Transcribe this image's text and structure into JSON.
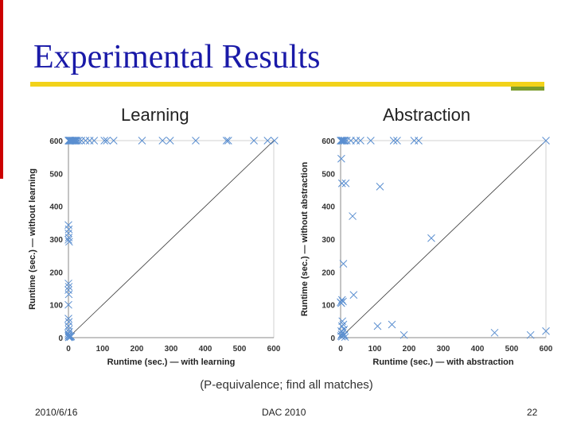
{
  "slide": {
    "title": "Experimental Results",
    "caption": "(P-equivalence; find all matches)",
    "footer": {
      "date": "2010/6/16",
      "conference": "DAC 2010",
      "page": "22"
    },
    "colors": {
      "title": "#1a1aa8",
      "rule": "#f2d21a",
      "rule_accent": "#7b9c2c",
      "side_bar": "#cc0000",
      "marker": "#5b8fd0"
    }
  },
  "chart_data": [
    {
      "type": "scatter",
      "panel_label": "Learning",
      "xlabel": "Runtime (sec.) — with learning",
      "ylabel": "Runtime (sec.) — without learning",
      "xlim": [
        0,
        600
      ],
      "ylim": [
        0,
        600
      ],
      "xticks": [
        0,
        100,
        200,
        300,
        400,
        500,
        600
      ],
      "yticks": [
        0,
        100,
        200,
        300,
        400,
        500,
        600
      ],
      "grid": false,
      "diagonal": true,
      "points": [
        [
          0,
          600
        ],
        [
          1,
          600
        ],
        [
          2,
          600
        ],
        [
          3,
          600
        ],
        [
          4,
          600
        ],
        [
          5,
          600
        ],
        [
          6,
          600
        ],
        [
          8,
          600
        ],
        [
          10,
          600
        ],
        [
          12,
          600
        ],
        [
          14,
          600
        ],
        [
          16,
          600
        ],
        [
          18,
          600
        ],
        [
          20,
          600
        ],
        [
          22,
          600
        ],
        [
          25,
          600
        ],
        [
          30,
          600
        ],
        [
          38,
          600
        ],
        [
          50,
          600
        ],
        [
          62,
          600
        ],
        [
          75,
          600
        ],
        [
          105,
          600
        ],
        [
          112,
          600
        ],
        [
          132,
          600
        ],
        [
          215,
          600
        ],
        [
          275,
          600
        ],
        [
          297,
          600
        ],
        [
          372,
          600
        ],
        [
          462,
          600
        ],
        [
          467,
          600
        ],
        [
          542,
          600
        ],
        [
          582,
          600
        ],
        [
          602,
          600
        ],
        [
          0,
          343
        ],
        [
          1,
          330
        ],
        [
          0,
          318
        ],
        [
          1,
          305
        ],
        [
          0,
          298
        ],
        [
          2,
          292
        ],
        [
          0,
          165
        ],
        [
          1,
          155
        ],
        [
          0,
          145
        ],
        [
          1,
          132
        ],
        [
          0,
          100
        ],
        [
          0,
          58
        ],
        [
          1,
          48
        ],
        [
          0,
          35
        ],
        [
          1,
          25
        ],
        [
          2,
          18
        ],
        [
          0,
          12
        ],
        [
          1,
          8
        ],
        [
          0,
          5
        ],
        [
          3,
          3
        ],
        [
          1,
          1
        ],
        [
          2,
          2
        ],
        [
          4,
          5
        ],
        [
          6,
          2
        ],
        [
          8,
          4
        ]
      ]
    },
    {
      "type": "scatter",
      "panel_label": "Abstraction",
      "xlabel": "Runtime (sec.) — with abstraction",
      "ylabel": "Runtime (sec.) — without abstraction",
      "xlim": [
        0,
        600
      ],
      "ylim": [
        0,
        600
      ],
      "xticks": [
        0,
        100,
        200,
        300,
        400,
        500,
        600
      ],
      "yticks": [
        0,
        100,
        200,
        300,
        400,
        500,
        600
      ],
      "grid": false,
      "diagonal": true,
      "points": [
        [
          0,
          600
        ],
        [
          1,
          600
        ],
        [
          3,
          600
        ],
        [
          5,
          600
        ],
        [
          7,
          600
        ],
        [
          10,
          600
        ],
        [
          13,
          600
        ],
        [
          18,
          600
        ],
        [
          30,
          600
        ],
        [
          45,
          600
        ],
        [
          58,
          600
        ],
        [
          88,
          600
        ],
        [
          155,
          600
        ],
        [
          165,
          600
        ],
        [
          215,
          600
        ],
        [
          228,
          600
        ],
        [
          600,
          600
        ],
        [
          2,
          545
        ],
        [
          4,
          470
        ],
        [
          15,
          470
        ],
        [
          115,
          460
        ],
        [
          35,
          370
        ],
        [
          265,
          303
        ],
        [
          8,
          225
        ],
        [
          38,
          130
        ],
        [
          4,
          115
        ],
        [
          7,
          110
        ],
        [
          2,
          105
        ],
        [
          0,
          108
        ],
        [
          5,
          50
        ],
        [
          8,
          40
        ],
        [
          4,
          35
        ],
        [
          10,
          25
        ],
        [
          2,
          20
        ],
        [
          6,
          15
        ],
        [
          3,
          10
        ],
        [
          11,
          8
        ],
        [
          1,
          5
        ],
        [
          4,
          3
        ],
        [
          7,
          6
        ],
        [
          13,
          2
        ],
        [
          108,
          35
        ],
        [
          150,
          40
        ],
        [
          185,
          8
        ],
        [
          450,
          15
        ],
        [
          555,
          8
        ],
        [
          600,
          20
        ]
      ]
    }
  ]
}
